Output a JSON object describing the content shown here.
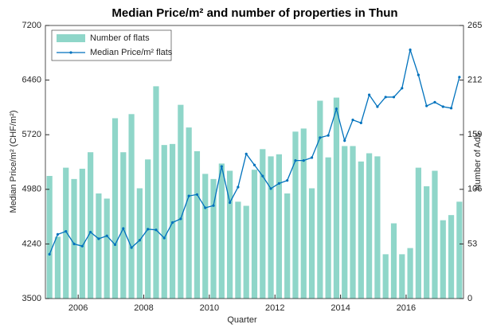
{
  "chart_data": {
    "type": "bar",
    "title": "Median Price/m² and number of properties in Thun",
    "xlabel": "Quarter",
    "ylabel": "Median Price/m² (CHF/m²)",
    "y2label": "Number of Ads",
    "x": [
      2005.125,
      2005.375,
      2005.625,
      2005.875,
      2006.125,
      2006.375,
      2006.625,
      2006.875,
      2007.125,
      2007.375,
      2007.625,
      2007.875,
      2008.125,
      2008.375,
      2008.625,
      2008.875,
      2009.125,
      2009.375,
      2009.625,
      2009.875,
      2010.125,
      2010.375,
      2010.625,
      2010.875,
      2011.125,
      2011.375,
      2011.625,
      2011.875,
      2012.125,
      2012.375,
      2012.625,
      2012.875,
      2013.125,
      2013.375,
      2013.625,
      2013.875,
      2014.125,
      2014.375,
      2014.625,
      2014.875,
      2015.125,
      2015.375,
      2015.625,
      2015.875,
      2016.125,
      2016.375,
      2016.625,
      2016.875,
      2017.125,
      2017.375,
      2017.625
    ],
    "series": [
      {
        "name": "Number of flats",
        "type": "bar",
        "axis": "y2",
        "color": "#8fd6c9",
        "values": [
          119,
          60,
          127,
          116,
          126,
          142,
          102,
          97,
          175,
          142,
          179,
          107,
          135,
          206,
          149,
          150,
          188,
          166,
          143,
          121,
          116,
          131,
          124,
          94,
          90,
          125,
          145,
          138,
          140,
          102,
          162,
          165,
          107,
          192,
          137,
          195,
          148,
          148,
          133,
          141,
          138,
          43,
          73,
          43,
          49,
          127,
          109,
          124,
          76,
          81,
          94
        ]
      },
      {
        "name": "Median Price/m² flats",
        "type": "line",
        "color": "#0072bd",
        "values": [
          4100,
          4370,
          4410,
          4240,
          4210,
          4400,
          4310,
          4350,
          4230,
          4450,
          4190,
          4290,
          4440,
          4430,
          4320,
          4530,
          4580,
          4890,
          4910,
          4730,
          4760,
          5290,
          4800,
          5010,
          5460,
          5310,
          5160,
          4990,
          5060,
          5100,
          5370,
          5370,
          5410,
          5680,
          5710,
          6070,
          5640,
          5920,
          5880,
          6260,
          6100,
          6230,
          6230,
          6350,
          6870,
          6530,
          6110,
          6160,
          6100,
          6080,
          6500
        ]
      }
    ],
    "xlim": [
      2005,
      2017.75
    ],
    "xticks": [
      2006,
      2008,
      2010,
      2012,
      2014,
      2016
    ],
    "ylim": [
      3500,
      7200
    ],
    "yticks": [
      3500,
      4240,
      4980,
      5720,
      6460,
      7200
    ],
    "y2lim": [
      0,
      265
    ],
    "y2ticks": [
      0,
      53,
      106,
      159,
      212,
      265
    ],
    "grid": false,
    "legend": "upper left"
  }
}
